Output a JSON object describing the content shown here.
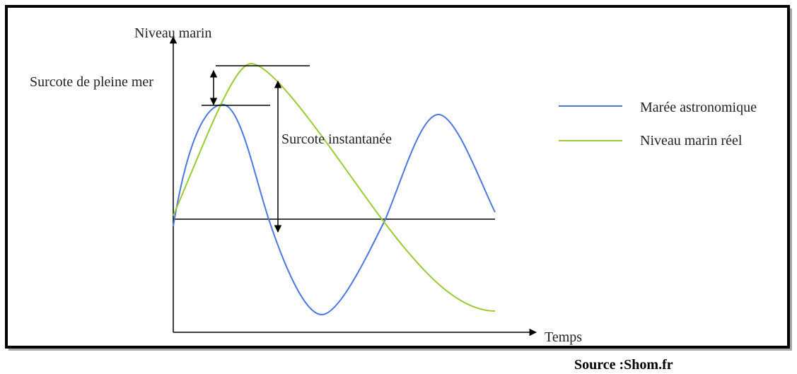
{
  "diagram": {
    "y_axis_label": "Niveau marin",
    "x_axis_label": "Temps",
    "annotations": [
      "Surcote de pleine mer",
      "Surcote instantanée"
    ],
    "legend": [
      "Marée astronomique",
      "Niveau marin réel"
    ],
    "source": "Source :Shom.fr"
  }
}
